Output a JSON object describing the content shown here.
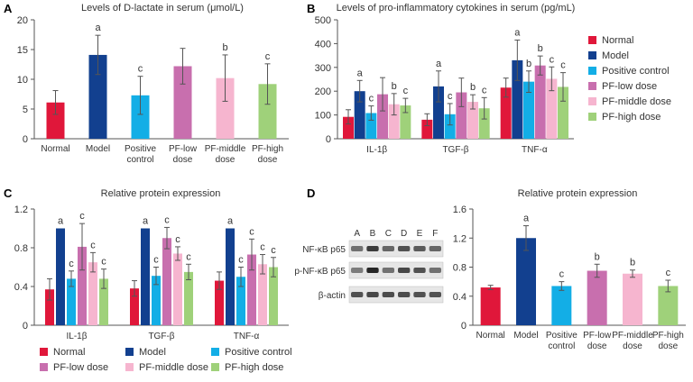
{
  "colors": {
    "Normal": "#e0173a",
    "Model": "#12408f",
    "Positive control": "#13aee6",
    "PF-low dose": "#c86fae",
    "PF-middle dose": "#f6b5cf",
    "PF-high dose": "#9fd17a"
  },
  "legend_b": [
    "Normal",
    "Model",
    "Positive control",
    "PF-low dose",
    "PF-middle dose",
    "PF-high dose"
  ],
  "legend_c": [
    "Normal",
    "Model",
    "Positive control",
    "PF-low dose",
    "PF-middle dose",
    "PF-high dose"
  ],
  "western_blot": {
    "lanes": [
      "A",
      "B",
      "C",
      "D",
      "E",
      "F"
    ],
    "rows": [
      "NF-κB p65",
      "p-NF-κB p65",
      "β-actin"
    ]
  },
  "chart_data": [
    {
      "panel": "A",
      "type": "bar",
      "title": "Levels of D-lactate in serum (μmol/L)",
      "categories": [
        "Normal",
        "Model",
        "Positive\ncontrol",
        "PF-low\ndose",
        "PF-middle\ndose",
        "PF-high\ndose"
      ],
      "series_names": [
        "Normal",
        "Model",
        "Positive control",
        "PF-low dose",
        "PF-middle dose",
        "PF-high dose"
      ],
      "values": [
        6.1,
        14.1,
        7.3,
        12.2,
        10.2,
        9.2
      ],
      "errors": [
        2.0,
        3.3,
        3.2,
        3.0,
        3.9,
        3.4
      ],
      "sig": [
        "",
        "a",
        "c",
        "",
        "b",
        "c"
      ],
      "ylim": [
        0,
        20
      ],
      "yticks": [
        0,
        5,
        10,
        15,
        20
      ]
    },
    {
      "panel": "B",
      "type": "bar",
      "title": "Levels of pro-inflammatory cytokines in serum (pg/mL)",
      "categories": [
        "IL-1β",
        "TGF-β",
        "TNF-α"
      ],
      "series": [
        {
          "name": "Normal",
          "values": [
            92,
            80,
            215
          ],
          "errors": [
            30,
            25,
            40
          ],
          "sig": [
            "",
            "",
            ""
          ]
        },
        {
          "name": "Model",
          "values": [
            200,
            220,
            330
          ],
          "errors": [
            45,
            65,
            85
          ],
          "sig": [
            "a",
            "a",
            "a"
          ]
        },
        {
          "name": "Positive control",
          "values": [
            108,
            103,
            240
          ],
          "errors": [
            30,
            45,
            45
          ],
          "sig": [
            "c",
            "c",
            "b"
          ]
        },
        {
          "name": "PF-low dose",
          "values": [
            187,
            195,
            308
          ],
          "errors": [
            70,
            60,
            40
          ],
          "sig": [
            "",
            "",
            "b"
          ]
        },
        {
          "name": "PF-middle dose",
          "values": [
            145,
            155,
            252
          ],
          "errors": [
            45,
            30,
            50
          ],
          "sig": [
            "b",
            "b",
            "c"
          ]
        },
        {
          "name": "PF-high dose",
          "values": [
            140,
            128,
            218
          ],
          "errors": [
            30,
            45,
            60
          ],
          "sig": [
            "c",
            "c",
            "c"
          ]
        }
      ],
      "ylim": [
        0,
        500
      ],
      "yticks": [
        0,
        100,
        200,
        300,
        400,
        500
      ]
    },
    {
      "panel": "C",
      "type": "bar",
      "title": "Relative protein expression",
      "categories": [
        "IL-1β",
        "TGF-β",
        "TNF-α"
      ],
      "series": [
        {
          "name": "Normal",
          "values": [
            0.37,
            0.38,
            0.46
          ],
          "errors": [
            0.11,
            0.08,
            0.09
          ],
          "sig": [
            "",
            "",
            ""
          ]
        },
        {
          "name": "Model",
          "values": [
            1.0,
            1.0,
            1.0
          ],
          "errors": [
            0,
            0,
            0
          ],
          "sig": [
            "a",
            "a",
            "a"
          ]
        },
        {
          "name": "Positive control",
          "values": [
            0.48,
            0.51,
            0.5
          ],
          "errors": [
            0.08,
            0.09,
            0.1
          ],
          "sig": [
            "c",
            "c",
            "c"
          ]
        },
        {
          "name": "PF-low dose",
          "values": [
            0.81,
            0.9,
            0.73
          ],
          "errors": [
            0.24,
            0.11,
            0.16
          ],
          "sig": [
            "c",
            "c",
            "c"
          ]
        },
        {
          "name": "PF-middle dose",
          "values": [
            0.65,
            0.74,
            0.63
          ],
          "errors": [
            0.1,
            0.07,
            0.1
          ],
          "sig": [
            "c",
            "c",
            "c"
          ]
        },
        {
          "name": "PF-high dose",
          "values": [
            0.48,
            0.55,
            0.6
          ],
          "errors": [
            0.1,
            0.08,
            0.1
          ],
          "sig": [
            "c",
            "c",
            "c"
          ]
        }
      ],
      "ylim": [
        0,
        1.2
      ],
      "yticks": [
        "0",
        "0.4",
        "0.8",
        "1.2"
      ]
    },
    {
      "panel": "D",
      "type": "bar",
      "title": "Relative protein expression",
      "categories": [
        "Normal",
        "Model",
        "Positive\ncontrol",
        "PF-low\ndose",
        "PF-middle\ndose",
        "PF-high\ndose"
      ],
      "series_names": [
        "Normal",
        "Model",
        "Positive control",
        "PF-low dose",
        "PF-middle dose",
        "PF-high dose"
      ],
      "values": [
        0.52,
        1.2,
        0.54,
        0.75,
        0.71,
        0.54
      ],
      "errors": [
        0.03,
        0.17,
        0.06,
        0.09,
        0.05,
        0.08
      ],
      "sig": [
        "",
        "a",
        "c",
        "b",
        "b",
        "c"
      ],
      "ylim": [
        0,
        1.6
      ],
      "yticks": [
        "0",
        "0.4",
        "0.8",
        "1.2",
        "1.6"
      ]
    }
  ]
}
